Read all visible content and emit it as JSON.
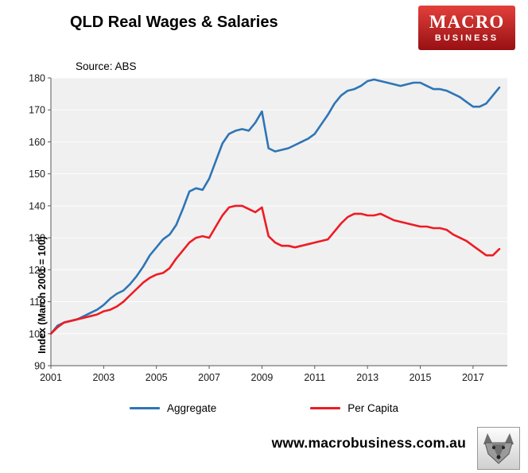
{
  "header": {
    "title": "QLD Real Wages & Salaries",
    "source": "Source: ABS"
  },
  "logo": {
    "line1": "MACRO",
    "line2": "BUSINESS"
  },
  "footer": {
    "url": "www.macrobusiness.com.au"
  },
  "chart_data": {
    "type": "line",
    "title": "QLD Real Wages & Salaries",
    "source": "Source: ABS",
    "ylabel": "Index (March 2001 = 100)",
    "ylim": [
      90,
      180
    ],
    "ytick_step": 10,
    "xlim": [
      2001,
      2018.3
    ],
    "xticks": [
      2001,
      2003,
      2005,
      2007,
      2009,
      2011,
      2013,
      2015,
      2017
    ],
    "plot_bg": "#f0f0f0",
    "axis_color": "#595959",
    "grid_color": "#ffffff",
    "legend_position": "bottom",
    "x": [
      2001,
      2001.25,
      2001.5,
      2001.75,
      2002,
      2002.25,
      2002.5,
      2002.75,
      2003,
      2003.25,
      2003.5,
      2003.75,
      2004,
      2004.25,
      2004.5,
      2004.75,
      2005,
      2005.25,
      2005.5,
      2005.75,
      2006,
      2006.25,
      2006.5,
      2006.75,
      2007,
      2007.25,
      2007.5,
      2007.75,
      2008,
      2008.25,
      2008.5,
      2008.75,
      2009,
      2009.25,
      2009.5,
      2009.75,
      2010,
      2010.25,
      2010.5,
      2010.75,
      2011,
      2011.25,
      2011.5,
      2011.75,
      2012,
      2012.25,
      2012.5,
      2012.75,
      2013,
      2013.25,
      2013.5,
      2013.75,
      2014,
      2014.25,
      2014.5,
      2014.75,
      2015,
      2015.25,
      2015.5,
      2015.75,
      2016,
      2016.25,
      2016.5,
      2016.75,
      2017,
      2017.25,
      2017.5,
      2017.75,
      2018
    ],
    "series": [
      {
        "name": "Aggregate",
        "color": "#2e75b6",
        "values": [
          100,
          102.5,
          103.5,
          104,
          104.5,
          105.5,
          106.5,
          107.5,
          109,
          111,
          112.5,
          113.5,
          115.5,
          118,
          121,
          124.5,
          127,
          129.5,
          131,
          134,
          139,
          144.5,
          145.5,
          145,
          148.5,
          154,
          159.5,
          162.5,
          163.5,
          164,
          163.5,
          166,
          169.5,
          158,
          157,
          157.5,
          158,
          159,
          160,
          161,
          162.5,
          165.5,
          168.5,
          172,
          174.5,
          176,
          176.5,
          177.5,
          179,
          179.5,
          179,
          178.5,
          178,
          177.5,
          178,
          178.5,
          178.5,
          177.5,
          176.5,
          176.5,
          176,
          175,
          174,
          172.5,
          171,
          171,
          172,
          174.5,
          177
        ]
      },
      {
        "name": "Per Capita",
        "color": "#ed1c24",
        "values": [
          100,
          102,
          103.5,
          104,
          104.5,
          105,
          105.5,
          106,
          107,
          107.5,
          108.5,
          110,
          112,
          114,
          116,
          117.5,
          118.5,
          119,
          120.5,
          123.5,
          126,
          128.5,
          130,
          130.5,
          130,
          133.5,
          137,
          139.5,
          140,
          140,
          139,
          138,
          139.5,
          130.5,
          128.5,
          127.5,
          127.5,
          127,
          127.5,
          128,
          128.5,
          129,
          129.5,
          132,
          134.5,
          136.5,
          137.5,
          137.5,
          137,
          137,
          137.5,
          136.5,
          135.5,
          135,
          134.5,
          134,
          133.5,
          133.5,
          133,
          133,
          132.5,
          131,
          130,
          129,
          127.5,
          126,
          124.5,
          124.5,
          126.5
        ]
      }
    ]
  }
}
